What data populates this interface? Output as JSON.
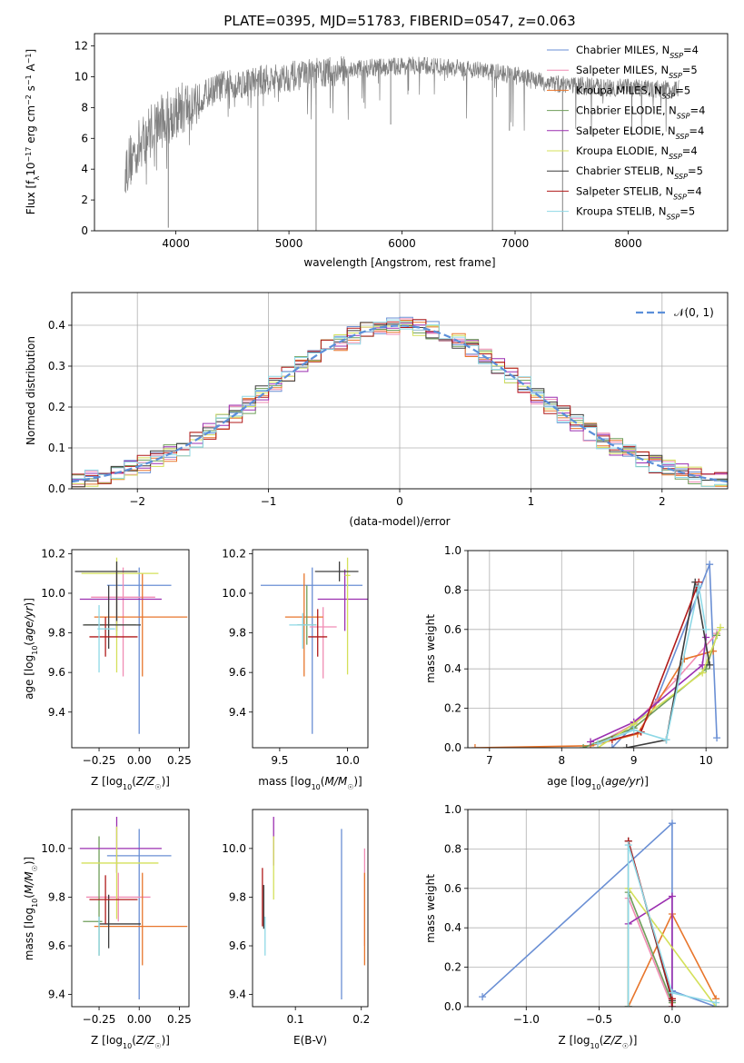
{
  "figure_title": "PLATE=0395, MJD=51783, FIBERID=0547, z=0.063",
  "colors": {
    "Chabrier MILES": "#6a8fd4",
    "Salpeter MILES": "#f08cb4",
    "Kroupa MILES": "#e8762c",
    "Chabrier ELODIE": "#6f9e5a",
    "Salpeter ELODIE": "#9b2fb0",
    "Kroupa ELODIE": "#d4e05a",
    "Chabrier STELIB": "#3d3d3d",
    "Salpeter STELIB": "#b01a1a",
    "Kroupa STELIB": "#8ed8e6",
    "data": "#808080",
    "gaussian": "#5b8fd9"
  },
  "chart_data": [
    {
      "id": "spectrum",
      "type": "line",
      "title": "PLATE=0395, MJD=51783, FIBERID=0547, z=0.063",
      "xlabel": "wavelength [Angstrom, rest frame]",
      "ylabel": "Flux [f_λ 10⁻¹⁷ erg cm⁻² s⁻¹ A⁻¹]",
      "xlim": [
        3280,
        8880
      ],
      "ylim": [
        0,
        12.8
      ],
      "xticks": [
        4000,
        5000,
        6000,
        7000,
        8000
      ],
      "yticks": [
        0,
        2,
        4,
        6,
        8,
        10,
        12
      ],
      "legend_position": "right",
      "legend": [
        {
          "model": "Chabrier MILES",
          "n": "4"
        },
        {
          "model": "Salpeter MILES",
          "n": "5"
        },
        {
          "model": "Kroupa MILES",
          "n": "5"
        },
        {
          "model": "Chabrier ELODIE",
          "n": "4"
        },
        {
          "model": "Salpeter ELODIE",
          "n": "4"
        },
        {
          "model": "Kroupa ELODIE",
          "n": "4"
        },
        {
          "model": "Chabrier STELIB",
          "n": "5"
        },
        {
          "model": "Salpeter STELIB",
          "n": "4"
        },
        {
          "model": "Kroupa STELIB",
          "n": "5"
        }
      ],
      "continuum": {
        "x": [
          3550,
          3650,
          3800,
          3950,
          4100,
          4250,
          4400,
          4600,
          4800,
          5000,
          5200,
          5400,
          5600,
          5800,
          6000,
          6200,
          6400,
          6600,
          6800,
          7000,
          7200,
          7400,
          7600,
          7800,
          8000,
          8200,
          8450
        ],
        "y": [
          4.0,
          5.2,
          6.8,
          7.5,
          8.1,
          8.8,
          9.4,
          9.6,
          9.8,
          10.0,
          10.2,
          10.3,
          10.5,
          10.6,
          10.7,
          10.7,
          10.6,
          10.5,
          10.3,
          10.1,
          9.7,
          9.5,
          9.4,
          9.3,
          9.3,
          9.2,
          9.2
        ]
      },
      "absorption_lines": [
        {
          "x": 3933,
          "y": 0.2
        },
        {
          "x": 4725,
          "y": 0.0
        },
        {
          "x": 5240,
          "y": 0.0
        },
        {
          "x": 5900,
          "y": 6.9
        },
        {
          "x": 6800,
          "y": 0.0
        },
        {
          "x": 6950,
          "y": 6.5
        },
        {
          "x": 7420,
          "y": 0.0
        }
      ]
    },
    {
      "id": "residuals",
      "type": "step",
      "xlabel": "(data-model)/error",
      "ylabel": "Normed distribution",
      "xlim": [
        -2.5,
        2.5
      ],
      "ylim": [
        0,
        0.48
      ],
      "xticks": [
        -2,
        -1,
        0,
        1,
        2
      ],
      "yticks": [
        0.0,
        0.1,
        0.2,
        0.3,
        0.4
      ],
      "grid": true,
      "legend_position": "top-right",
      "gaussian_label": "𝒩(0, 1)",
      "gaussian": {
        "mean": 0,
        "sigma": 1
      }
    },
    {
      "id": "age-vs-Z",
      "type": "errorbar",
      "xlabel": "Z [log₁₀(Z/Z☉)]",
      "ylabel": "age  [log₁₀(age/yr)]",
      "xlim": [
        -0.42,
        0.31
      ],
      "ylim": [
        9.22,
        10.22
      ],
      "xticks": [
        -0.25,
        0.0,
        0.25
      ],
      "yticks": [
        9.4,
        9.6,
        9.8,
        10.0,
        10.2
      ],
      "points": [
        {
          "model": "Chabrier MILES",
          "x": 0.0,
          "xerr": [
            0.2,
            0.2
          ],
          "y": 10.04,
          "yerr": [
            0.75,
            0.09
          ]
        },
        {
          "model": "Salpeter MILES",
          "x": -0.1,
          "xerr": [
            0.2,
            0.2
          ],
          "y": 9.98,
          "yerr": [
            0.4,
            0.15
          ]
        },
        {
          "model": "Kroupa MILES",
          "x": 0.02,
          "xerr": [
            0.3,
            0.28
          ],
          "y": 9.88,
          "yerr": [
            0.3,
            0.22
          ]
        },
        {
          "model": "Chabrier ELODIE",
          "x": -0.14,
          "xerr": [
            0.2,
            0.12
          ],
          "y": 9.84,
          "yerr": [
            0.06,
            0.04
          ]
        },
        {
          "model": "Salpeter ELODIE",
          "x": -0.14,
          "xerr": [
            0.23,
            0.28
          ],
          "y": 9.97,
          "yerr": [
            0.16,
            0.15
          ]
        },
        {
          "model": "Kroupa ELODIE",
          "x": -0.14,
          "xerr": [
            0.22,
            0.26
          ],
          "y": 10.1,
          "yerr": [
            0.5,
            0.08
          ]
        },
        {
          "model": "Chabrier STELIB",
          "x": -0.19,
          "xerr": [
            0.16,
            0.2
          ],
          "y": 9.84,
          "yerr": [
            0.12,
            0.2
          ]
        },
        {
          "model": "Salpeter STELIB",
          "x": -0.21,
          "xerr": [
            0.1,
            0.2
          ],
          "y": 9.78,
          "yerr": [
            0.1,
            0.1
          ]
        },
        {
          "model": "Chabrier STELIB",
          "x": -0.14,
          "xerr": [
            0.26,
            0.13
          ],
          "y": 10.11,
          "yerr": [
            0.25,
            0.05
          ]
        },
        {
          "model": "Kroupa STELIB",
          "x": -0.25,
          "xerr": [
            0.01,
            0.1
          ],
          "y": 9.82,
          "yerr": [
            0.22,
            0.12
          ]
        }
      ]
    },
    {
      "id": "age-vs-mass",
      "type": "errorbar",
      "xlabel": "mass [log₁₀(M/M☉)]",
      "xlim": [
        9.3,
        10.15
      ],
      "ylim": [
        9.22,
        10.22
      ],
      "xticks": [
        9.5,
        10.0
      ],
      "yticks": [
        9.4,
        9.6,
        9.8,
        10.0,
        10.2
      ],
      "points": [
        {
          "model": "Chabrier MILES",
          "x": 9.74,
          "xerr": [
            0.38,
            0.37
          ],
          "y": 10.04,
          "yerr": [
            0.75,
            0.09
          ]
        },
        {
          "model": "Salpeter MILES",
          "x": 9.82,
          "xerr": [
            0.1,
            0.1
          ],
          "y": 9.83,
          "yerr": [
            0.26,
            0.1
          ]
        },
        {
          "model": "Kroupa MILES",
          "x": 9.68,
          "xerr": [
            0.14,
            0.14
          ],
          "y": 9.88,
          "yerr": [
            0.3,
            0.22
          ]
        },
        {
          "model": "Chabrier ELODIE",
          "x": 9.7,
          "xerr": [
            0.07,
            0.07
          ],
          "y": 9.84,
          "yerr": [
            0.1,
            0.2
          ]
        },
        {
          "model": "Salpeter ELODIE",
          "x": 9.98,
          "xerr": [
            0.2,
            0.2
          ],
          "y": 9.97,
          "yerr": [
            0.16,
            0.15
          ]
        },
        {
          "model": "Kroupa ELODIE",
          "x": 10.0,
          "xerr": [
            0.02,
            0.02
          ],
          "y": 10.09,
          "yerr": [
            0.5,
            0.09
          ]
        },
        {
          "model": "Chabrier STELIB",
          "x": 9.94,
          "xerr": [
            0.18,
            0.14
          ],
          "y": 10.11,
          "yerr": [
            0.05,
            0.05
          ]
        },
        {
          "model": "Salpeter STELIB",
          "x": 9.78,
          "xerr": [
            0.07,
            0.07
          ],
          "y": 9.78,
          "yerr": [
            0.1,
            0.14
          ]
        },
        {
          "model": "Kroupa STELIB",
          "x": 9.67,
          "xerr": [
            0.1,
            0.1
          ],
          "y": 9.84,
          "yerr": [
            0.12,
            0.06
          ]
        }
      ]
    },
    {
      "id": "weight-vs-age",
      "type": "line",
      "xlabel": "age  [log₁₀(age/yr)]",
      "ylabel": "mass weight",
      "xlim": [
        6.7,
        10.3
      ],
      "ylim": [
        0,
        1
      ],
      "xticks": [
        7,
        8,
        9,
        10
      ],
      "yticks": [
        0.0,
        0.2,
        0.4,
        0.6,
        0.8,
        1.0
      ],
      "grid": true,
      "series": [
        {
          "model": "Chabrier MILES",
          "x": [
            8.7,
            9.3,
            10.05,
            10.15
          ],
          "y": [
            0.0,
            0.23,
            0.93,
            0.05
          ]
        },
        {
          "model": "Salpeter MILES",
          "x": [
            8.5,
            9.0,
            9.6,
            10.15
          ],
          "y": [
            0.02,
            0.12,
            0.35,
            0.58
          ]
        },
        {
          "model": "Kroupa MILES",
          "x": [
            6.8,
            8.4,
            9.05,
            9.7,
            10.1
          ],
          "y": [
            0.0,
            0.01,
            0.07,
            0.45,
            0.49
          ]
        },
        {
          "model": "Chabrier ELODIE",
          "x": [
            8.3,
            9.0,
            10.0,
            10.15
          ],
          "y": [
            0.0,
            0.1,
            0.4,
            0.57
          ]
        },
        {
          "model": "Salpeter ELODIE",
          "x": [
            8.4,
            9.0,
            9.95,
            10.0
          ],
          "y": [
            0.03,
            0.13,
            0.42,
            0.56
          ]
        },
        {
          "model": "Kroupa ELODIE",
          "x": [
            8.5,
            9.0,
            9.95,
            10.2
          ],
          "y": [
            0.0,
            0.12,
            0.38,
            0.61
          ]
        },
        {
          "model": "Chabrier STELIB",
          "x": [
            8.9,
            9.45,
            9.85,
            10.05
          ],
          "y": [
            0.0,
            0.04,
            0.84,
            0.42
          ]
        },
        {
          "model": "Salpeter STELIB",
          "x": [
            8.7,
            9.1,
            9.9
          ],
          "y": [
            0.04,
            0.08,
            0.84
          ]
        },
        {
          "model": "Kroupa STELIB",
          "x": [
            8.5,
            9.0,
            9.45,
            9.9,
            10.0
          ],
          "y": [
            0.02,
            0.09,
            0.04,
            0.82,
            0.6
          ]
        }
      ]
    },
    {
      "id": "mass-vs-Z",
      "type": "errorbar",
      "xlabel": "Z [log₁₀(Z/Z☉)]",
      "ylabel": "mass [log₁₀(M/M☉)]",
      "xlim": [
        -0.42,
        0.31
      ],
      "ylim": [
        9.35,
        10.16
      ],
      "xticks": [
        -0.25,
        0.0,
        0.25
      ],
      "yticks": [
        9.4,
        9.6,
        9.8,
        10.0
      ],
      "points": [
        {
          "model": "Chabrier MILES",
          "x": 0.0,
          "xerr": [
            0.2,
            0.2
          ],
          "y": 9.97,
          "yerr": [
            0.59,
            0.11
          ]
        },
        {
          "model": "Salpeter MILES",
          "x": -0.13,
          "xerr": [
            0.2,
            0.2
          ],
          "y": 9.8,
          "yerr": [
            0.1,
            0.1
          ]
        },
        {
          "model": "Kroupa MILES",
          "x": 0.02,
          "xerr": [
            0.3,
            0.28
          ],
          "y": 9.68,
          "yerr": [
            0.16,
            0.22
          ]
        },
        {
          "model": "Chabrier ELODIE",
          "x": -0.25,
          "xerr": [
            0.1,
            0.02
          ],
          "y": 9.7,
          "yerr": [
            0.14,
            0.35
          ]
        },
        {
          "model": "Salpeter ELODIE",
          "x": -0.14,
          "xerr": [
            0.23,
            0.28
          ],
          "y": 10.0,
          "yerr": [
            0.1,
            0.13
          ]
        },
        {
          "model": "Kroupa ELODIE",
          "x": -0.14,
          "xerr": [
            0.22,
            0.26
          ],
          "y": 9.94,
          "yerr": [
            0.23,
            0.15
          ]
        },
        {
          "model": "Chabrier STELIB",
          "x": -0.19,
          "xerr": [
            0.06,
            0.2
          ],
          "y": 9.69,
          "yerr": [
            0.1,
            0.12
          ]
        },
        {
          "model": "Salpeter STELIB",
          "x": -0.21,
          "xerr": [
            0.1,
            0.2
          ],
          "y": 9.79,
          "yerr": [
            0.1,
            0.1
          ]
        },
        {
          "model": "Kroupa STELIB",
          "x": -0.25,
          "xerr": [
            0.0,
            0.0
          ],
          "y": 9.64,
          "yerr": [
            0.08,
            0.08
          ]
        }
      ]
    },
    {
      "id": "mass-vs-ebv",
      "type": "errorbar",
      "xlabel": "E(B-V)",
      "xlim": [
        0.035,
        0.21
      ],
      "ylim": [
        9.35,
        10.16
      ],
      "xticks": [
        0.1,
        0.2
      ],
      "yticks": [
        9.4,
        9.6,
        9.8,
        10.0
      ],
      "points": [
        {
          "model": "Chabrier MILES",
          "x": 0.17,
          "y": 9.73,
          "yerr": [
            0.35,
            0.35
          ]
        },
        {
          "model": "Salpeter MILES",
          "x": 0.205,
          "y": 9.8,
          "yerr": [
            0.2,
            0.2
          ]
        },
        {
          "model": "Kroupa MILES",
          "x": 0.205,
          "y": 9.71,
          "yerr": [
            0.19,
            0.19
          ]
        },
        {
          "model": "Salpeter ELODIE",
          "x": 0.067,
          "y": 10.03,
          "yerr": [
            0.1,
            0.1
          ]
        },
        {
          "model": "Kroupa ELODIE",
          "x": 0.067,
          "y": 9.92,
          "yerr": [
            0.13,
            0.13
          ]
        },
        {
          "model": "Chabrier STELIB",
          "x": 0.052,
          "y": 9.76,
          "yerr": [
            0.09,
            0.09
          ]
        },
        {
          "model": "Salpeter STELIB",
          "x": 0.05,
          "y": 9.8,
          "yerr": [
            0.12,
            0.12
          ]
        },
        {
          "model": "Kroupa STELIB",
          "x": 0.054,
          "y": 9.64,
          "yerr": [
            0.08,
            0.08
          ]
        }
      ]
    },
    {
      "id": "weight-vs-Z",
      "type": "line",
      "xlabel": "Z [log₁₀(Z/Z☉)]",
      "ylabel": "mass weight",
      "xlim": [
        -1.4,
        0.38
      ],
      "ylim": [
        0,
        1
      ],
      "xticks": [
        -1.0,
        -0.5,
        0.0
      ],
      "yticks": [
        0.0,
        0.2,
        0.4,
        0.6,
        0.8,
        1.0
      ],
      "grid": true,
      "series": [
        {
          "model": "Chabrier MILES",
          "x": [
            -1.3,
            0.0,
            0.0,
            0.3
          ],
          "y": [
            0.05,
            0.93,
            0.08,
            0.0
          ]
        },
        {
          "model": "Kroupa MILES",
          "x": [
            -0.3,
            0.0,
            0.3
          ],
          "y": [
            0.0,
            0.47,
            0.04
          ]
        },
        {
          "model": "Salpeter MILES",
          "x": [
            -0.3,
            0.0
          ],
          "y": [
            0.55,
            0.0
          ]
        },
        {
          "model": "Chabrier ELODIE",
          "x": [
            -0.3,
            -0.3,
            0.0
          ],
          "y": [
            0.0,
            0.58,
            0.02
          ]
        },
        {
          "model": "Salpeter ELODIE",
          "x": [
            -0.3,
            0.0,
            0.0
          ],
          "y": [
            0.42,
            0.56,
            0.0
          ]
        },
        {
          "model": "Kroupa ELODIE",
          "x": [
            -0.3,
            -0.3,
            0.3
          ],
          "y": [
            0.0,
            0.6,
            0.0
          ]
        },
        {
          "model": "Chabrier STELIB",
          "x": [
            -0.3,
            -0.3,
            0.0
          ],
          "y": [
            0.0,
            0.84,
            0.03
          ]
        },
        {
          "model": "Salpeter STELIB",
          "x": [
            -0.3,
            0.0,
            0.0
          ],
          "y": [
            0.84,
            0.04,
            0.0
          ]
        },
        {
          "model": "Kroupa STELIB",
          "x": [
            -0.3,
            -0.3,
            0.0,
            0.3
          ],
          "y": [
            0.0,
            0.82,
            0.07,
            0.02
          ]
        }
      ]
    }
  ]
}
